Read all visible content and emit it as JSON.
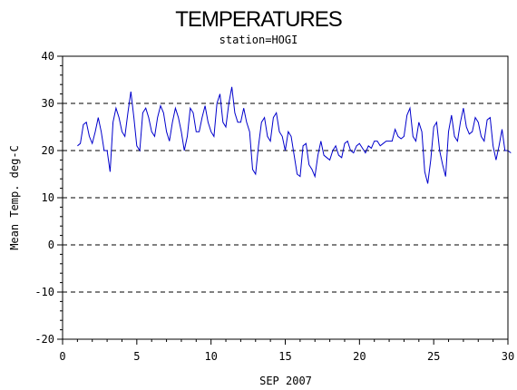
{
  "chart_data": {
    "type": "line",
    "title": "TEMPERATURES",
    "subtitle": "station=HOGI",
    "xlabel": "SEP 2007",
    "ylabel": "Mean Temp. deg-C",
    "xlim": [
      0,
      30
    ],
    "ylim": [
      -20,
      40
    ],
    "xticks": [
      0,
      5,
      10,
      15,
      20,
      25,
      30
    ],
    "yticks": [
      -20,
      -10,
      0,
      10,
      20,
      30,
      40
    ],
    "xtick_labels": [
      "0",
      "5",
      "10",
      "15",
      "20",
      "25",
      "30"
    ],
    "ytick_labels": [
      "-20",
      "-10",
      "0",
      "10",
      "20",
      "30",
      "40"
    ],
    "grid": "horizontal dashed at major y ticks",
    "line_color": "#0000cc",
    "series": [
      {
        "x": [
          1.0,
          1.2,
          1.4,
          1.6,
          1.8,
          2.0,
          2.2,
          2.4,
          2.6,
          2.8,
          3.0,
          3.2,
          3.4,
          3.6,
          3.8,
          4.0,
          4.2,
          4.4,
          4.6,
          4.8,
          5.0,
          5.2,
          5.4,
          5.6,
          5.8,
          6.0,
          6.2,
          6.4,
          6.6,
          6.8,
          7.0,
          7.2,
          7.4,
          7.6,
          7.8,
          8.0,
          8.2,
          8.4,
          8.6,
          8.8,
          9.0,
          9.2,
          9.4,
          9.6,
          9.8,
          10.0,
          10.2,
          10.4,
          10.6,
          10.8,
          11.0,
          11.2,
          11.4,
          11.6,
          11.8,
          12.0,
          12.2,
          12.4,
          12.6,
          12.8,
          13.0,
          13.2,
          13.4,
          13.6,
          13.8,
          14.0,
          14.2,
          14.4,
          14.6,
          14.8,
          15.0,
          15.2,
          15.4,
          15.6,
          15.8,
          16.0,
          16.2,
          16.4,
          16.6,
          16.8,
          17.0,
          17.2,
          17.4,
          17.6,
          17.8,
          18.0,
          18.2,
          18.4,
          18.6,
          18.8,
          19.0,
          19.2,
          19.4,
          19.6,
          19.8,
          20.0,
          20.2,
          20.4,
          20.6,
          20.8,
          21.0,
          21.2,
          21.4,
          21.6,
          21.8,
          22.0,
          22.2,
          22.4,
          22.6,
          22.8,
          23.0,
          23.2,
          23.4,
          23.6,
          23.8,
          24.0,
          24.2,
          24.4,
          24.6,
          24.8,
          25.0,
          25.2,
          25.4,
          25.6,
          25.8,
          26.0,
          26.2,
          26.4,
          26.6,
          26.8,
          27.0,
          27.2,
          27.4,
          27.6,
          27.8,
          28.0,
          28.2,
          28.4,
          28.6,
          28.8,
          29.0,
          29.2,
          29.4,
          29.6,
          29.8,
          30.0,
          30.2
        ],
        "y": [
          21,
          21.5,
          25.5,
          26,
          23,
          21.5,
          24,
          27,
          24,
          20,
          20,
          15.5,
          26,
          29,
          27,
          24,
          23,
          28,
          32.5,
          27,
          21,
          20,
          28,
          29,
          27,
          24,
          23,
          27,
          29.5,
          28,
          24,
          22,
          26,
          29,
          27,
          24,
          20,
          23,
          29,
          28,
          24,
          24,
          27,
          29.5,
          26,
          24,
          23,
          30,
          32,
          26,
          25,
          30,
          33.5,
          28,
          26,
          26,
          29,
          26,
          24,
          16,
          15,
          21,
          26,
          27,
          23,
          22,
          27,
          28,
          24,
          23,
          20,
          24,
          23,
          19,
          15,
          14.5,
          21,
          21.5,
          17,
          16,
          14.5,
          19,
          22,
          19,
          18.5,
          18,
          20,
          21,
          19,
          18.5,
          21.5,
          22,
          20,
          19.5,
          21,
          21.5,
          20.5,
          19.5,
          21,
          20.5,
          22,
          22,
          21,
          21.5,
          22,
          22,
          22,
          24.5,
          23,
          22.5,
          23,
          27.5,
          29,
          23,
          22,
          26,
          24,
          15.5,
          13,
          18,
          25,
          26,
          20,
          17,
          14.5,
          24,
          27.5,
          23,
          22,
          26,
          29,
          25,
          23.5,
          24,
          27,
          26,
          23,
          22,
          26.5,
          27,
          21,
          18,
          21,
          24.5,
          20,
          20,
          19.5
        ]
      }
    ]
  }
}
